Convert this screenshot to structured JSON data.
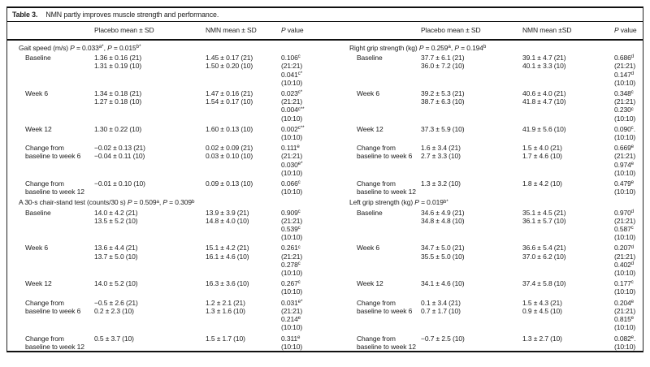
{
  "colors": {
    "text": "#1c1c1c",
    "border": "#111111",
    "background": "#ffffff"
  },
  "table": {
    "title_label": "Table 3.",
    "title_text": "NMN partly improves muscle strength and performance.",
    "columns": [
      "",
      "Placebo mean ± SD",
      "NMN mean ± SD",
      "*P* value",
      "",
      "Placebo mean ± SD",
      "NMN mean ±SD",
      "*P* value"
    ],
    "sections": [
      {
        "left_title": "Gait speed (m/s) *P* = 0.033^{a*}, *P* = 0.015^{b*}",
        "right_title": "Right grip strength (kg) *P* = 0.259^{a}, *P* = 0.194^{b}",
        "rows": [
          {
            "left": {
              "label": [
                "Baseline"
              ],
              "placebo": [
                "1.36 ± 0.16 (21)",
                "1.31 ± 0.19 (10)"
              ],
              "nmn": [
                "1.45 ± 0.17 (21)",
                "1.50 ± 0.20 (10)"
              ],
              "p": [
                "0.106^{c}",
                "(21:21)",
                "0.041^{c*}",
                "(10:10)"
              ]
            },
            "right": {
              "label": [
                "Baseline"
              ],
              "placebo": [
                "37.7 ± 6.1 (21)",
                "36.0 ± 7.2 (10)"
              ],
              "nmn": [
                "39.1 ± 4.7 (21)",
                "40.1 ± 3.3 (10)"
              ],
              "p": [
                "0.686^{d}",
                "(21:21)",
                "0.147^{d}",
                "(10:10)"
              ]
            }
          },
          {
            "left": {
              "label": [
                "Week 6"
              ],
              "placebo": [
                "1.34 ± 0.18 (21)",
                "1.27 ± 0.18 (10)"
              ],
              "nmn": [
                "1.47 ± 0.16 (21)",
                "1.54 ± 0.17 (10)"
              ],
              "p": [
                "0.023^{c*}",
                "(21:21)",
                "0.004^{c**}",
                "(10:10)"
              ]
            },
            "right": {
              "label": [
                "Week 6"
              ],
              "placebo": [
                "39.2 ± 5.3 (21)",
                "38.7 ± 6.3 (10)"
              ],
              "nmn": [
                "40.6 ± 4.0 (21)",
                "41.8 ± 4.7 (10)"
              ],
              "p": [
                "0.348^{c}",
                "(21:21)",
                "0.230^{c}",
                "(10:10)"
              ]
            }
          },
          {
            "left": {
              "label": [
                "Week 12"
              ],
              "placebo": [
                "1.30 ± 0.22 (10)"
              ],
              "nmn": [
                "1.60 ± 0.13 (10)"
              ],
              "p": [
                "0.002^{c**}",
                "(10:10)"
              ]
            },
            "right": {
              "label": [
                "Week 12"
              ],
              "placebo": [
                "37.3 ± 5.9 (10)"
              ],
              "nmn": [
                "41.9 ± 5.6 (10)"
              ],
              "p": [
                "0.090^{c}.",
                "(10:10)"
              ]
            }
          },
          {
            "left": {
              "label": [
                "Change from",
                "baseline to week 6"
              ],
              "placebo": [
                "−0.02 ± 0.13 (21)",
                "−0.04 ± 0.11 (10)"
              ],
              "nmn": [
                "0.02 ± 0.09 (21)",
                "0.03 ± 0.10 (10)"
              ],
              "p": [
                "0.111^{e}",
                "(21:21)",
                "0.030^{e*}",
                "(10:10)"
              ]
            },
            "right": {
              "label": [
                "Change from",
                "baseline to week 6"
              ],
              "placebo": [
                "1.6 ± 3.4 (21)",
                "2.7 ± 3.3 (10)"
              ],
              "nmn": [
                "1.5 ± 4.0 (21)",
                "1.7 ± 4.6 (10)"
              ],
              "p": [
                "0.669^{e}",
                "(21:21)",
                "0.974^{e}",
                "(10:10)"
              ]
            }
          },
          {
            "left": {
              "label": [
                "Change from",
                "baseline to week 12"
              ],
              "placebo": [
                "−0.01 ± 0.10 (10)"
              ],
              "nmn": [
                "0.09 ± 0.13 (10)"
              ],
              "p": [
                "0.066^{c}",
                "(10:10)"
              ]
            },
            "right": {
              "label": [
                "Change from",
                "baseline to week 12"
              ],
              "placebo": [
                "1.3 ± 3.2 (10)"
              ],
              "nmn": [
                "1.8 ± 4.2 (10)"
              ],
              "p": [
                "0.479^{e}",
                "(10:10)"
              ]
            }
          }
        ]
      },
      {
        "left_title": "A 30-s chair-stand test (counts/30 s) *P* = 0.509^{a}, *P* = 0.309^{b}",
        "right_title": "Left grip strength (kg) *P* = 0.019^{b*}",
        "rows": [
          {
            "left": {
              "label": [
                "Baseline"
              ],
              "placebo": [
                "14.0 ± 4.2 (21)",
                "13.5 ± 5.2 (10)"
              ],
              "nmn": [
                "13.9 ± 3.9 (21)",
                "14.8 ± 4.0 (10)"
              ],
              "p": [
                "0.909^{c}",
                "(21:21)",
                "0.539^{c}",
                "(10:10)"
              ]
            },
            "right": {
              "label": [
                "Baseline"
              ],
              "placebo": [
                "34.6 ± 4.9 (21)",
                "34.8 ± 4.8 (10)"
              ],
              "nmn": [
                "35.1 ± 4.5 (21)",
                "36.1 ± 5.7 (10)"
              ],
              "p": [
                "0.970^{d}",
                "(21:21)",
                "0.587^{c}",
                "(10:10)"
              ]
            }
          },
          {
            "left": {
              "label": [
                "Week 6"
              ],
              "placebo": [
                "13.6 ± 4.4 (21)",
                "13.7 ± 5.0 (10)"
              ],
              "nmn": [
                "15.1 ± 4.2 (21)",
                "16.1 ± 4.6 (10)"
              ],
              "p": [
                "0.261^{c}",
                "(21:21)",
                "0.278^{c}",
                "(10:10)"
              ]
            },
            "right": {
              "label": [
                "Week 6"
              ],
              "placebo": [
                "34.7 ± 5.0 (21)",
                "35.5 ± 5.0 (10)"
              ],
              "nmn": [
                "36.6 ± 5.4 (21)",
                "37.0 ± 6.2 (10)"
              ],
              "p": [
                "0.207^{d}",
                "(21:21)",
                "0.402^{d}",
                "(10:10)"
              ]
            }
          },
          {
            "left": {
              "label": [
                "Week 12"
              ],
              "placebo": [
                "14.0 ± 5.2 (10)"
              ],
              "nmn": [
                "16.3 ± 3.6 (10)"
              ],
              "p": [
                "0.267^{c}",
                "(10:10)"
              ]
            },
            "right": {
              "label": [
                "Week 12"
              ],
              "placebo": [
                "34.1 ± 4.6 (10)"
              ],
              "nmn": [
                "37.4 ± 5.8 (10)"
              ],
              "p": [
                "0.177^{c}",
                "(10:10)"
              ]
            }
          },
          {
            "left": {
              "label": [
                "Change from",
                "baseline to week 6"
              ],
              "placebo": [
                "−0.5 ± 2.6 (21)",
                "0.2 ± 2.3 (10)"
              ],
              "nmn": [
                "1.2 ± 2.1 (21)",
                "1.3 ± 1.6 (10)"
              ],
              "p": [
                "0.031^{e*}",
                "(21:21)",
                "0.214^{e}",
                "(10:10)"
              ]
            },
            "right": {
              "label": [
                "Change from",
                "baseline to week 6"
              ],
              "placebo": [
                "0.1 ± 3.4 (21)",
                "0.7 ± 1.7 (10)"
              ],
              "nmn": [
                "1.5 ± 4.3 (21)",
                "0.9 ± 4.5 (10)"
              ],
              "p": [
                "0.204^{e}",
                "(21:21)",
                "0.815^{e}",
                "(10:10)"
              ]
            }
          },
          {
            "left": {
              "label": [
                "Change from",
                "baseline to week 12"
              ],
              "placebo": [
                "0.5 ± 3.7 (10)"
              ],
              "nmn": [
                "1.5 ± 1.7 (10)"
              ],
              "p": [
                "0.311^{e}",
                "(10:10)"
              ]
            },
            "right": {
              "label": [
                "Change from",
                "baseline to week 12"
              ],
              "placebo": [
                "−0.7 ± 2.5 (10)"
              ],
              "nmn": [
                "1.3 ± 2.7 (10)"
              ],
              "p": [
                "0.082^{e}.",
                "(10:10)"
              ]
            }
          }
        ]
      }
    ]
  }
}
